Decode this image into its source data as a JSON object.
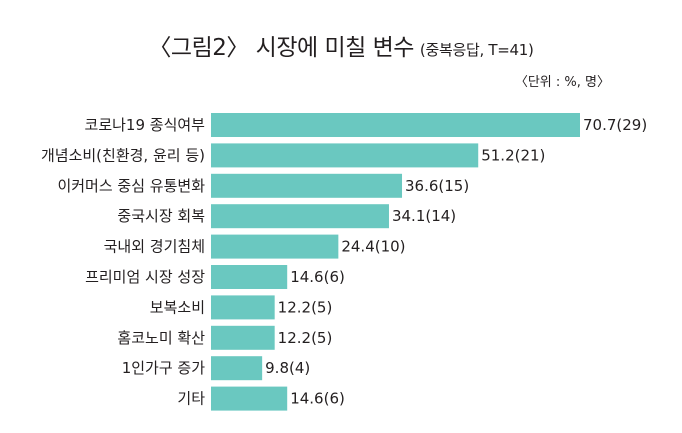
{
  "title": "〈그림2〉 시장에 미칠 변수",
  "subtitle": "(중복응답, T=41)",
  "unit_note": "〈단위 : %, 명〉",
  "colors": {
    "bar": "#6ac8c0",
    "text": "#231f20"
  },
  "chart_data": {
    "type": "bar",
    "orientation": "horizontal",
    "categories": [
      "코로나19 종식여부",
      "개념소비(친환경, 윤리 등)",
      "이커머스 중심 유통변화",
      "중국시장 회복",
      "국내외 경기침체",
      "프리미엄 시장 성장",
      "보복소비",
      "홈코노미 확산",
      "1인가구 증가",
      "기타"
    ],
    "values": [
      70.7,
      51.2,
      36.6,
      34.1,
      24.4,
      14.6,
      12.2,
      12.2,
      9.8,
      14.6
    ],
    "counts": [
      29,
      21,
      15,
      14,
      10,
      6,
      5,
      5,
      4,
      6
    ],
    "value_labels": [
      "70.7(29)",
      "51.2(21)",
      "36.6(15)",
      "34.1(14)",
      "24.4(10)",
      "14.6(6)",
      "12.2(5)",
      "12.2(5)",
      "9.8(4)",
      "14.6(6)"
    ],
    "xlim": [
      0,
      70.7
    ],
    "grid": false,
    "legend": "none"
  }
}
